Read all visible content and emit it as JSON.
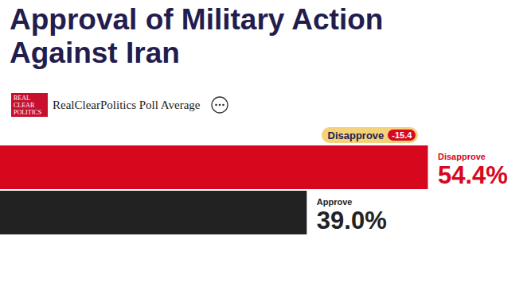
{
  "chart_data": {
    "type": "bar",
    "title": "Approval of Military Action Against Iran",
    "subtitle": "RealClearPolitics Poll Average",
    "logo": "REAL CLEAR POLITICS",
    "categories": [
      "Disapprove",
      "Approve"
    ],
    "values": [
      54.4,
      39.0
    ],
    "value_labels": [
      "54.4%",
      "39.0%"
    ],
    "colors": [
      "#d7071e",
      "#222222"
    ],
    "orientation": "horizontal",
    "data_labels": true,
    "tick_labels": false,
    "xlim": [
      0,
      67
    ],
    "annotations": [
      {
        "label": "Disapprove",
        "value": -15.4
      }
    ]
  }
}
